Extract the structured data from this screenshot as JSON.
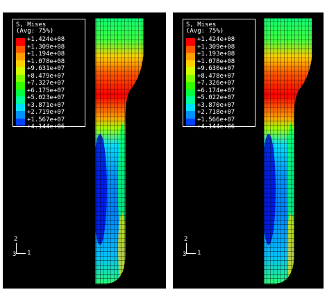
{
  "panels": [
    {
      "legend": {
        "title": "S, Mises",
        "subtitle": "(Avg: 75%)",
        "values": [
          "+1.424e+08",
          "+1.309e+08",
          "+1.194e+08",
          "+1.078e+08",
          "+9.631e+07",
          "+8.479e+07",
          "+7.327e+07",
          "+6.175e+07",
          "+5.023e+07",
          "+3.871e+07",
          "+2.719e+07",
          "+1.567e+07",
          "+4.144e+06"
        ]
      },
      "triad": {
        "axis_y": "2",
        "axis_z": "3",
        "axis_x": "1"
      }
    },
    {
      "legend": {
        "title": "S, Mises",
        "subtitle": "(Avg: 75%)",
        "values": [
          "+1.424e+08",
          "+1.309e+08",
          "+1.193e+08",
          "+1.078e+08",
          "+9.630e+07",
          "+8.478e+07",
          "+7.326e+07",
          "+6.174e+07",
          "+5.022e+07",
          "+3.870e+07",
          "+2.718e+07",
          "+1.566e+07",
          "+4.144e+06"
        ]
      },
      "triad": {
        "axis_y": "2",
        "axis_z": "3",
        "axis_x": "1"
      }
    }
  ],
  "colors": {
    "contour_scale": [
      "#ff0000",
      "#ff5a00",
      "#ffa000",
      "#ffd000",
      "#d0ff00",
      "#80ff00",
      "#30ff00",
      "#00ff40",
      "#00ff9a",
      "#00e0ff",
      "#0090ff",
      "#0040ff",
      "#0000ff"
    ],
    "background": "#000000",
    "mesh_lines": "#000000"
  }
}
